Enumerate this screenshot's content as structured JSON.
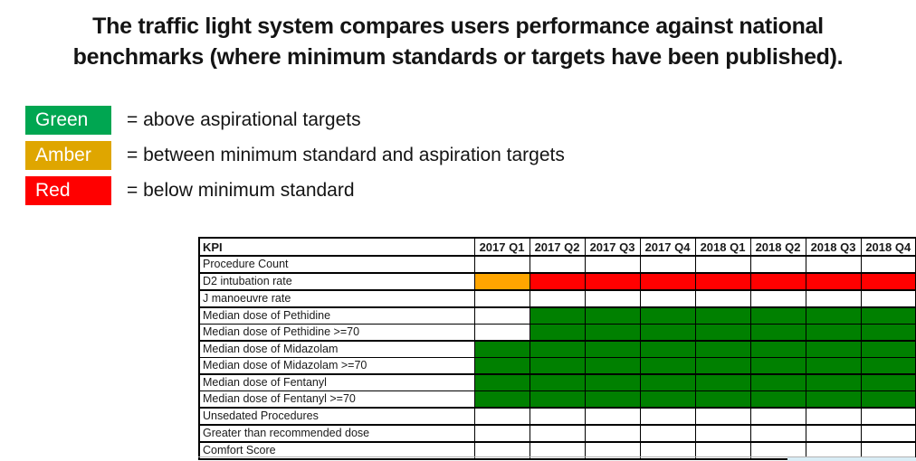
{
  "title": {
    "line1": "The traffic light system compares users performance against national",
    "line2": "benchmarks (where minimum standards or targets have been published)."
  },
  "legend": [
    {
      "label": "Green",
      "color": "#00A651",
      "description": "= above aspirational targets"
    },
    {
      "label": "Amber",
      "color": "#DFA600",
      "description": "= between minimum standard and aspiration targets"
    },
    {
      "label": "Red",
      "color": "#FF0000",
      "description": "= below minimum standard"
    }
  ],
  "table": {
    "header": [
      "KPI",
      "2017 Q1",
      "2017 Q2",
      "2017 Q3",
      "2017 Q4",
      "2018 Q1",
      "2018 Q2",
      "2018 Q3",
      "2018 Q4"
    ],
    "status_colors": {
      "green": "#008000",
      "amber": "#FFA500",
      "red": "#FF0000"
    },
    "rows": [
      {
        "label": "Procedure Count",
        "group_start": true,
        "cells": [
          "",
          "",
          "",
          "",
          "",
          "",
          "",
          ""
        ]
      },
      {
        "label": "D2 intubation rate",
        "group_start": true,
        "cells": [
          "amber",
          "red",
          "red",
          "red",
          "red",
          "red",
          "red",
          "red"
        ]
      },
      {
        "label": "J manoeuvre rate",
        "group_start": true,
        "cells": [
          "",
          "",
          "",
          "",
          "",
          "",
          "",
          ""
        ]
      },
      {
        "label": "Median dose of Pethidine",
        "group_start": true,
        "cells": [
          "",
          "green",
          "green",
          "green",
          "green",
          "green",
          "green",
          "green"
        ]
      },
      {
        "label": "Median dose of Pethidine >=70",
        "group_start": false,
        "cells": [
          "",
          "green",
          "green",
          "green",
          "green",
          "green",
          "green",
          "green"
        ]
      },
      {
        "label": "Median dose of Midazolam",
        "group_start": true,
        "cells": [
          "green",
          "green",
          "green",
          "green",
          "green",
          "green",
          "green",
          "green"
        ]
      },
      {
        "label": "Median dose of Midazolam >=70",
        "group_start": false,
        "cells": [
          "green",
          "green",
          "green",
          "green",
          "green",
          "green",
          "green",
          "green"
        ]
      },
      {
        "label": "Median dose of Fentanyl",
        "group_start": true,
        "cells": [
          "green",
          "green",
          "green",
          "green",
          "green",
          "green",
          "green",
          "green"
        ]
      },
      {
        "label": "Median dose of Fentanyl >=70",
        "group_start": false,
        "cells": [
          "green",
          "green",
          "green",
          "green",
          "green",
          "green",
          "green",
          "green"
        ]
      },
      {
        "label": "Unsedated Procedures",
        "group_start": true,
        "cells": [
          "",
          "",
          "",
          "",
          "",
          "",
          "",
          ""
        ]
      },
      {
        "label": "Greater than recommended dose",
        "group_start": true,
        "cells": [
          "",
          "",
          "",
          "",
          "",
          "",
          "",
          ""
        ]
      },
      {
        "label": "Comfort Score",
        "group_start": true,
        "cells": [
          "",
          "",
          "",
          "",
          "",
          "",
          "",
          ""
        ]
      }
    ]
  }
}
